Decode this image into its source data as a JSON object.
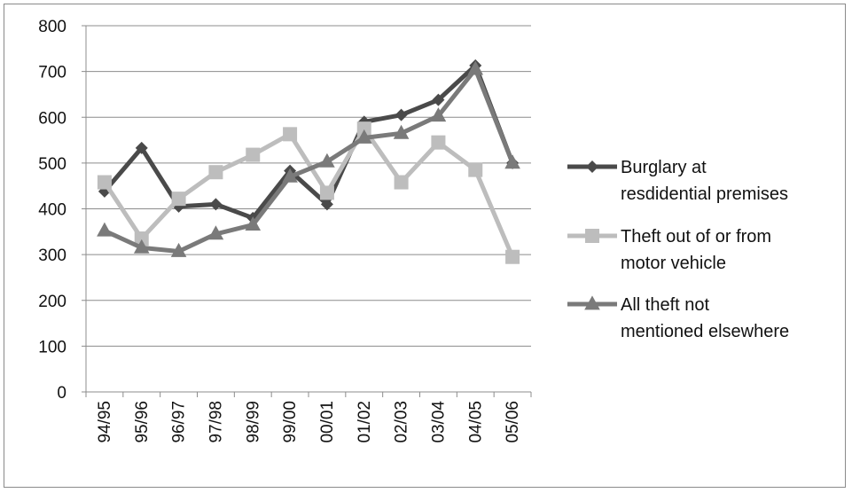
{
  "chart_data": {
    "type": "line",
    "title": "",
    "xlabel": "",
    "ylabel": "",
    "categories": [
      "94/95",
      "95/96",
      "96/97",
      "97/98",
      "98/99",
      "99/00",
      "00/01",
      "01/02",
      "02/03",
      "03/04",
      "04/05",
      "05/06"
    ],
    "ylim": [
      0,
      800
    ],
    "yticks": [
      0,
      100,
      200,
      300,
      400,
      500,
      600,
      700,
      800
    ],
    "grid": true,
    "legend_position": "right",
    "series": [
      {
        "name": "Burglary at resdidential premises",
        "legend_lines": [
          "Burglary at",
          "resdidential premises"
        ],
        "color": "#4a4a4a",
        "marker": "diamond",
        "values": [
          438,
          533,
          405,
          410,
          380,
          483,
          410,
          590,
          605,
          638,
          713,
          500
        ]
      },
      {
        "name": "Theft out of or from motor vehicle",
        "legend_lines": [
          "Theft out of or from",
          "motor vehicle"
        ],
        "color": "#bdbdbd",
        "marker": "square",
        "values": [
          458,
          335,
          422,
          480,
          518,
          563,
          435,
          575,
          458,
          545,
          485,
          295
        ]
      },
      {
        "name": "All theft not mentioned elsewhere",
        "legend_lines": [
          "All theft not",
          "mentioned elsewhere"
        ],
        "color": "#7a7a7a",
        "marker": "triangle",
        "values": [
          352,
          315,
          307,
          345,
          365,
          470,
          503,
          555,
          565,
          603,
          705,
          500
        ]
      }
    ]
  }
}
